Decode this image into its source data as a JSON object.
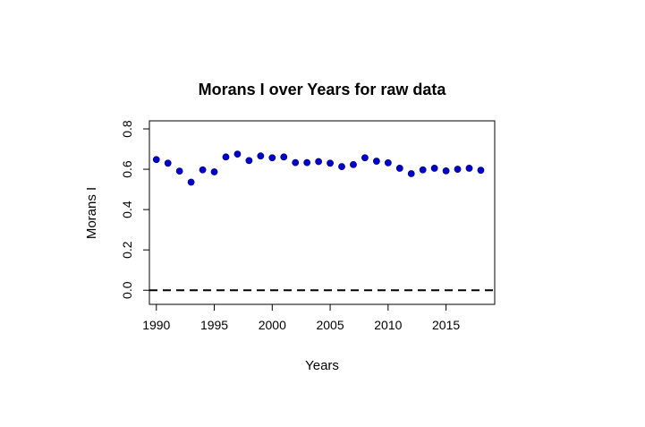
{
  "chart_data": {
    "type": "scatter",
    "title": "Morans I over Years for raw data",
    "xlabel": "Years",
    "ylabel": "Morans I",
    "xlim": [
      1989.4,
      2019.2
    ],
    "ylim": [
      -0.07,
      0.84
    ],
    "xticks": [
      1990,
      1995,
      2000,
      2005,
      2010,
      2015
    ],
    "yticks": [
      0.0,
      0.2,
      0.4,
      0.6,
      0.8
    ],
    "ytick_labels": [
      "0.0",
      "0.2",
      "0.4",
      "0.6",
      "0.8"
    ],
    "reference_line": {
      "y": 0,
      "style": "dashed",
      "color": "#000000"
    },
    "point_color": "#0000cc",
    "x": [
      1990,
      1991,
      1992,
      1993,
      1994,
      1995,
      1996,
      1997,
      1998,
      1999,
      2000,
      2001,
      2002,
      2003,
      2004,
      2005,
      2006,
      2007,
      2008,
      2009,
      2010,
      2011,
      2012,
      2013,
      2014,
      2015,
      2016,
      2017,
      2018
    ],
    "y": [
      0.648,
      0.63,
      0.591,
      0.536,
      0.597,
      0.587,
      0.661,
      0.675,
      0.643,
      0.666,
      0.657,
      0.661,
      0.633,
      0.633,
      0.638,
      0.63,
      0.613,
      0.623,
      0.657,
      0.64,
      0.632,
      0.605,
      0.578,
      0.597,
      0.605,
      0.592,
      0.6,
      0.605,
      0.595
    ]
  }
}
